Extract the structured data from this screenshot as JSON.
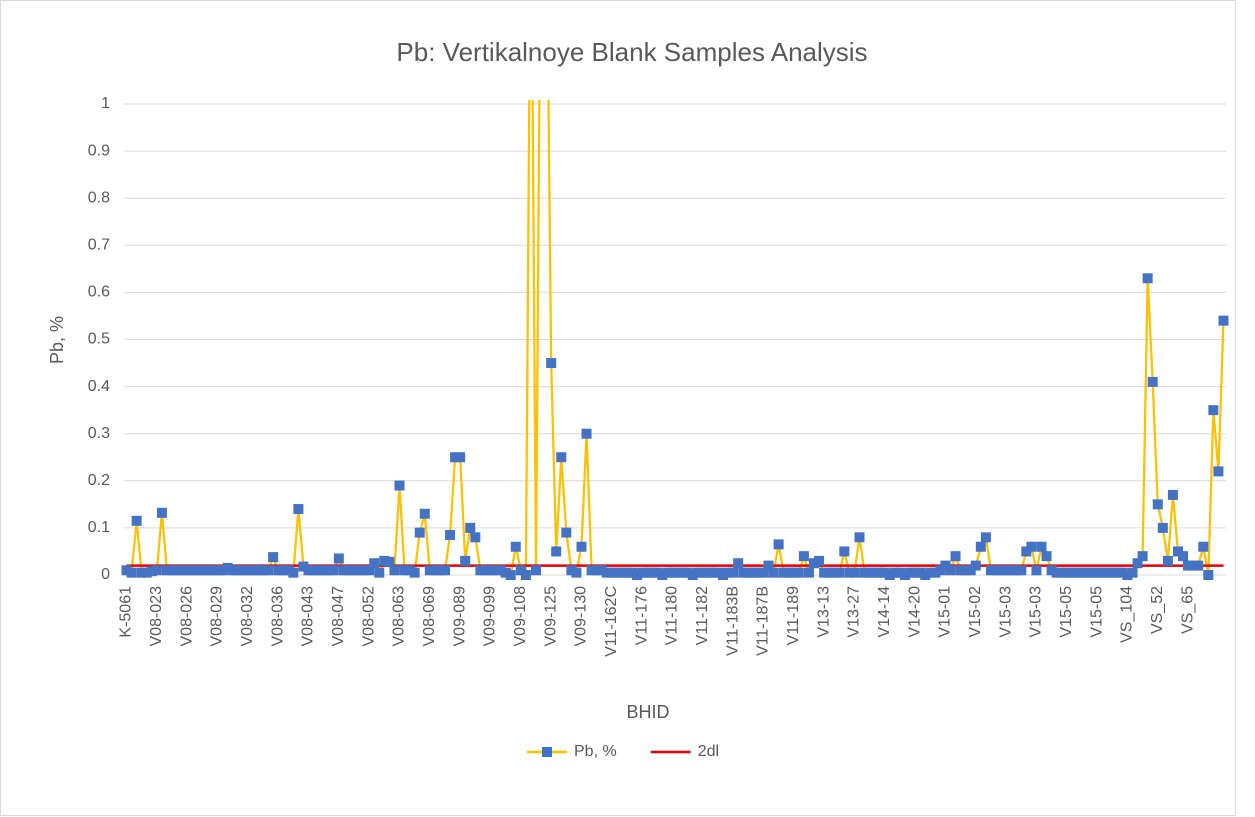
{
  "chart_data": {
    "type": "line",
    "title": "Pb: Vertikalnoye Blank Samples Analysis",
    "xlabel": "BHID",
    "ylabel": "Pb, %",
    "categories": [
      "K-5061",
      null,
      null,
      null,
      null,
      null,
      "V08-023",
      null,
      null,
      null,
      null,
      null,
      "V08-026",
      null,
      null,
      null,
      null,
      null,
      "V08-029",
      null,
      null,
      null,
      null,
      null,
      "V08-032",
      null,
      null,
      null,
      null,
      null,
      "V08-036",
      null,
      null,
      null,
      null,
      null,
      "V08-043",
      null,
      null,
      null,
      null,
      null,
      "V08-047",
      null,
      null,
      null,
      null,
      null,
      "V08-052",
      null,
      null,
      null,
      null,
      null,
      "V08-063",
      null,
      null,
      null,
      null,
      null,
      "V08-069",
      null,
      null,
      null,
      null,
      null,
      "V09-089",
      null,
      null,
      null,
      null,
      null,
      "V09-099",
      null,
      null,
      null,
      null,
      null,
      "V09-108",
      null,
      null,
      null,
      null,
      null,
      "V09-125",
      null,
      null,
      null,
      null,
      null,
      "V09-130",
      null,
      null,
      null,
      null,
      null,
      "V11-162C",
      null,
      null,
      null,
      null,
      null,
      "V11-176",
      null,
      null,
      null,
      null,
      null,
      "V11-180",
      null,
      null,
      null,
      null,
      null,
      "V11-182",
      null,
      null,
      null,
      null,
      null,
      "V11-183B",
      null,
      null,
      null,
      null,
      null,
      "V11-187B",
      null,
      null,
      null,
      null,
      null,
      "V11-189",
      null,
      null,
      null,
      null,
      null,
      "V13-13",
      null,
      null,
      null,
      null,
      null,
      "V13-27",
      null,
      null,
      null,
      null,
      null,
      "V14-14",
      null,
      null,
      null,
      null,
      null,
      "V14-20",
      null,
      null,
      null,
      null,
      null,
      "V15-01",
      null,
      null,
      null,
      null,
      null,
      "V15-02",
      null,
      null,
      null,
      null,
      null,
      "V15-03",
      null,
      null,
      null,
      null,
      null,
      "V15-03",
      null,
      null,
      null,
      null,
      null,
      "V15-05",
      null,
      null,
      null,
      null,
      null,
      "V15-05",
      null,
      null,
      null,
      null,
      null,
      "VS_104",
      null,
      null,
      null,
      null,
      null,
      "VS_52",
      null,
      null,
      null,
      null,
      null,
      "VS_65",
      null,
      null,
      null,
      null,
      null,
      null,
      null
    ],
    "series": [
      {
        "name": "Pb, %",
        "color": "#FFC000",
        "marker_color": "#4472C4",
        "values": [
          0.01,
          0.005,
          0.115,
          0.005,
          0.005,
          0.008,
          0.01,
          0.132,
          0.01,
          0.01,
          0.01,
          0.01,
          0.01,
          0.01,
          0.01,
          0.01,
          0.01,
          0.01,
          0.01,
          0.01,
          0.015,
          0.01,
          0.01,
          0.01,
          0.01,
          0.01,
          0.01,
          0.01,
          0.01,
          0.038,
          0.01,
          0.01,
          0.01,
          0.005,
          0.14,
          0.018,
          0.01,
          0.01,
          0.01,
          0.01,
          0.01,
          0.01,
          0.035,
          0.01,
          0.01,
          0.01,
          0.01,
          0.01,
          0.01,
          0.025,
          0.005,
          0.03,
          0.028,
          0.01,
          0.19,
          0.01,
          0.01,
          0.005,
          0.09,
          0.13,
          0.01,
          0.01,
          0.01,
          0.01,
          0.085,
          0.25,
          0.25,
          0.03,
          0.1,
          0.08,
          0.01,
          0.01,
          0.01,
          0.01,
          0.01,
          0.005,
          0,
          0.06,
          0.01,
          0,
          1.5,
          0.01,
          1.5,
          1.5,
          0.45,
          0.05,
          0.25,
          0.09,
          0.01,
          0.005,
          0.06,
          0.3,
          0.01,
          0.01,
          0.01,
          0.005,
          0.005,
          0.005,
          0.005,
          0.005,
          0.005,
          0,
          0.005,
          0.005,
          0.005,
          0.005,
          0,
          0.005,
          0.005,
          0.005,
          0.005,
          0.005,
          0,
          0.005,
          0.005,
          0.005,
          0.005,
          0.005,
          0,
          0.005,
          0.005,
          0.025,
          0.005,
          0.005,
          0.005,
          0.005,
          0.005,
          0.02,
          0.005,
          0.065,
          0.005,
          0.005,
          0.005,
          0.005,
          0.04,
          0.005,
          0.025,
          0.03,
          0.005,
          0.005,
          0.005,
          0.005,
          0.05,
          0.005,
          0.005,
          0.08,
          0.005,
          0.005,
          0.005,
          0.005,
          0.005,
          0,
          0.005,
          0.005,
          0,
          0.005,
          0.005,
          0.005,
          0,
          0.005,
          0.005,
          0.01,
          0.02,
          0.01,
          0.04,
          0.01,
          0.01,
          0.01,
          0.02,
          0.06,
          0.08,
          0.01,
          0.01,
          0.01,
          0.01,
          0.01,
          0.01,
          0.01,
          0.05,
          0.06,
          0.01,
          0.06,
          0.04,
          0.01,
          0.005,
          0.005,
          0.005,
          0.005,
          0.005,
          0.005,
          0.005,
          0.005,
          0.005,
          0.005,
          0.005,
          0.005,
          0.005,
          0.005,
          0,
          0.005,
          0.025,
          0.04,
          0.63,
          0.41,
          0.15,
          0.1,
          0.03,
          0.17,
          0.05,
          0.04,
          0.02,
          0.02,
          0.02,
          0.06,
          0,
          0.35,
          0.22,
          0.54
        ]
      },
      {
        "name": "2dl",
        "color": "#E00000",
        "values": [
          0.02,
          0.02,
          0.02,
          0.02,
          0.02,
          0.02,
          0.02,
          0.02,
          0.02,
          0.02,
          0.02,
          0.02,
          0.02,
          0.02,
          0.02,
          0.02,
          0.02,
          0.02,
          0.02,
          0.02,
          0.02,
          0.02,
          0.02,
          0.02,
          0.02,
          0.02,
          0.02,
          0.02,
          0.02,
          0.02,
          0.02,
          0.02,
          0.02,
          0.02,
          0.02,
          0.02,
          0.02,
          0.02,
          0.02,
          0.02,
          0.02,
          0.02,
          0.02,
          0.02,
          0.02,
          0.02,
          0.02,
          0.02,
          0.02,
          0.02,
          0.02,
          0.02,
          0.02,
          0.02,
          0.02,
          0.02,
          0.02,
          0.02,
          0.02,
          0.02,
          0.02,
          0.02,
          0.02,
          0.02,
          0.02,
          0.02,
          0.02,
          0.02,
          0.02,
          0.02,
          0.02,
          0.02,
          0.02,
          0.02,
          0.02,
          0.02,
          0.02,
          0.02,
          0.02,
          0.02,
          0.02,
          0.02,
          0.02,
          0.02,
          0.02,
          0.02,
          0.02,
          0.02,
          0.02,
          0.02,
          0.02,
          0.02,
          0.02,
          0.02,
          0.02,
          0.02,
          0.02,
          0.02,
          0.02,
          0.02,
          0.02,
          0.02,
          0.02,
          0.02,
          0.02,
          0.02,
          0.02,
          0.02,
          0.02,
          0.02,
          0.02,
          0.02,
          0.02,
          0.02,
          0.02,
          0.02,
          0.02,
          0.02,
          0.02,
          0.02,
          0.02,
          0.02,
          0.02,
          0.02,
          0.02,
          0.02,
          0.02,
          0.02,
          0.02,
          0.02,
          0.02,
          0.02,
          0.02,
          0.02,
          0.02,
          0.02,
          0.02,
          0.02,
          0.02,
          0.02,
          0.02,
          0.02,
          0.02,
          0.02,
          0.02,
          0.02,
          0.02,
          0.02,
          0.02,
          0.02,
          0.02,
          0.02,
          0.02,
          0.02,
          0.02,
          0.02,
          0.02,
          0.02,
          0.02,
          0.02,
          0.02,
          0.02,
          0.02,
          0.02,
          0.02,
          0.02,
          0.02,
          0.02,
          0.02,
          0.02,
          0.02,
          0.02,
          0.02,
          0.02,
          0.02,
          0.02,
          0.02,
          0.02,
          0.02,
          0.02,
          0.02,
          0.02,
          0.02,
          0.02,
          0.02,
          0.02,
          0.02,
          0.02,
          0.02,
          0.02,
          0.02,
          0.02,
          0.02,
          0.02,
          0.02,
          0.02,
          0.02,
          0.02,
          0.02,
          0.02,
          0.02,
          0.02,
          0.02,
          0.02,
          0.02,
          0.02,
          0.02,
          0.02,
          0.02,
          0.02,
          0.02,
          0.02,
          0.02,
          0.02,
          0.02,
          0.02,
          0.02,
          0.02
        ]
      }
    ],
    "ylim": [
      0,
      1
    ],
    "yticks": [
      0,
      0.1,
      0.2,
      0.3,
      0.4,
      0.5,
      0.6,
      0.7,
      0.8,
      0.9,
      1
    ],
    "grid": true,
    "legend": "bottom"
  }
}
